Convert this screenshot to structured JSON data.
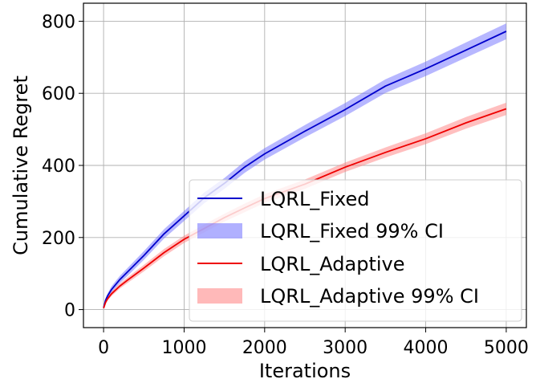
{
  "chart_data": {
    "type": "line",
    "title": "",
    "xlabel": "Iterations",
    "ylabel": "Cumulative Regret",
    "xlim": [
      -250,
      5250
    ],
    "ylim": [
      -50,
      850
    ],
    "xticks": [
      0,
      1000,
      2000,
      3000,
      4000,
      5000
    ],
    "yticks": [
      0,
      200,
      400,
      600,
      800
    ],
    "xtick_labels": [
      "0",
      "1000",
      "2000",
      "3000",
      "4000",
      "5000"
    ],
    "ytick_labels": [
      "0",
      "200",
      "400",
      "600",
      "800"
    ],
    "grid": true,
    "legend_position": "lower-right",
    "x": [
      0,
      25,
      50,
      100,
      200,
      300,
      500,
      750,
      1000,
      1250,
      1500,
      1750,
      2000,
      2500,
      3000,
      3500,
      4000,
      4500,
      5000
    ],
    "series": [
      {
        "name": "LQRL_Fixed",
        "color": "#0000cc",
        "band_color": "#7070ff",
        "ci_label": "LQRL_Fixed 99% CI",
        "values": [
          5,
          26,
          38,
          56,
          83,
          105,
          150,
          210,
          260,
          310,
          350,
          395,
          432,
          495,
          555,
          620,
          668,
          720,
          772
        ],
        "ci_halfwidth": [
          3,
          6,
          7,
          9,
          10,
          11,
          12,
          13,
          14,
          15,
          15,
          16,
          16,
          17,
          18,
          19,
          20,
          21,
          22
        ]
      },
      {
        "name": "LQRL_Adaptive",
        "color": "#ee0000",
        "band_color": "#ff8080",
        "ci_label": "LQRL_Adaptive 99% CI",
        "values": [
          4,
          20,
          30,
          44,
          65,
          82,
          115,
          158,
          195,
          225,
          255,
          282,
          308,
          348,
          395,
          436,
          474,
          518,
          557
        ],
        "ci_halfwidth": [
          2,
          4,
          5,
          6,
          7,
          8,
          9,
          10,
          10,
          11,
          11,
          12,
          12,
          13,
          13,
          14,
          15,
          16,
          17
        ]
      }
    ]
  }
}
